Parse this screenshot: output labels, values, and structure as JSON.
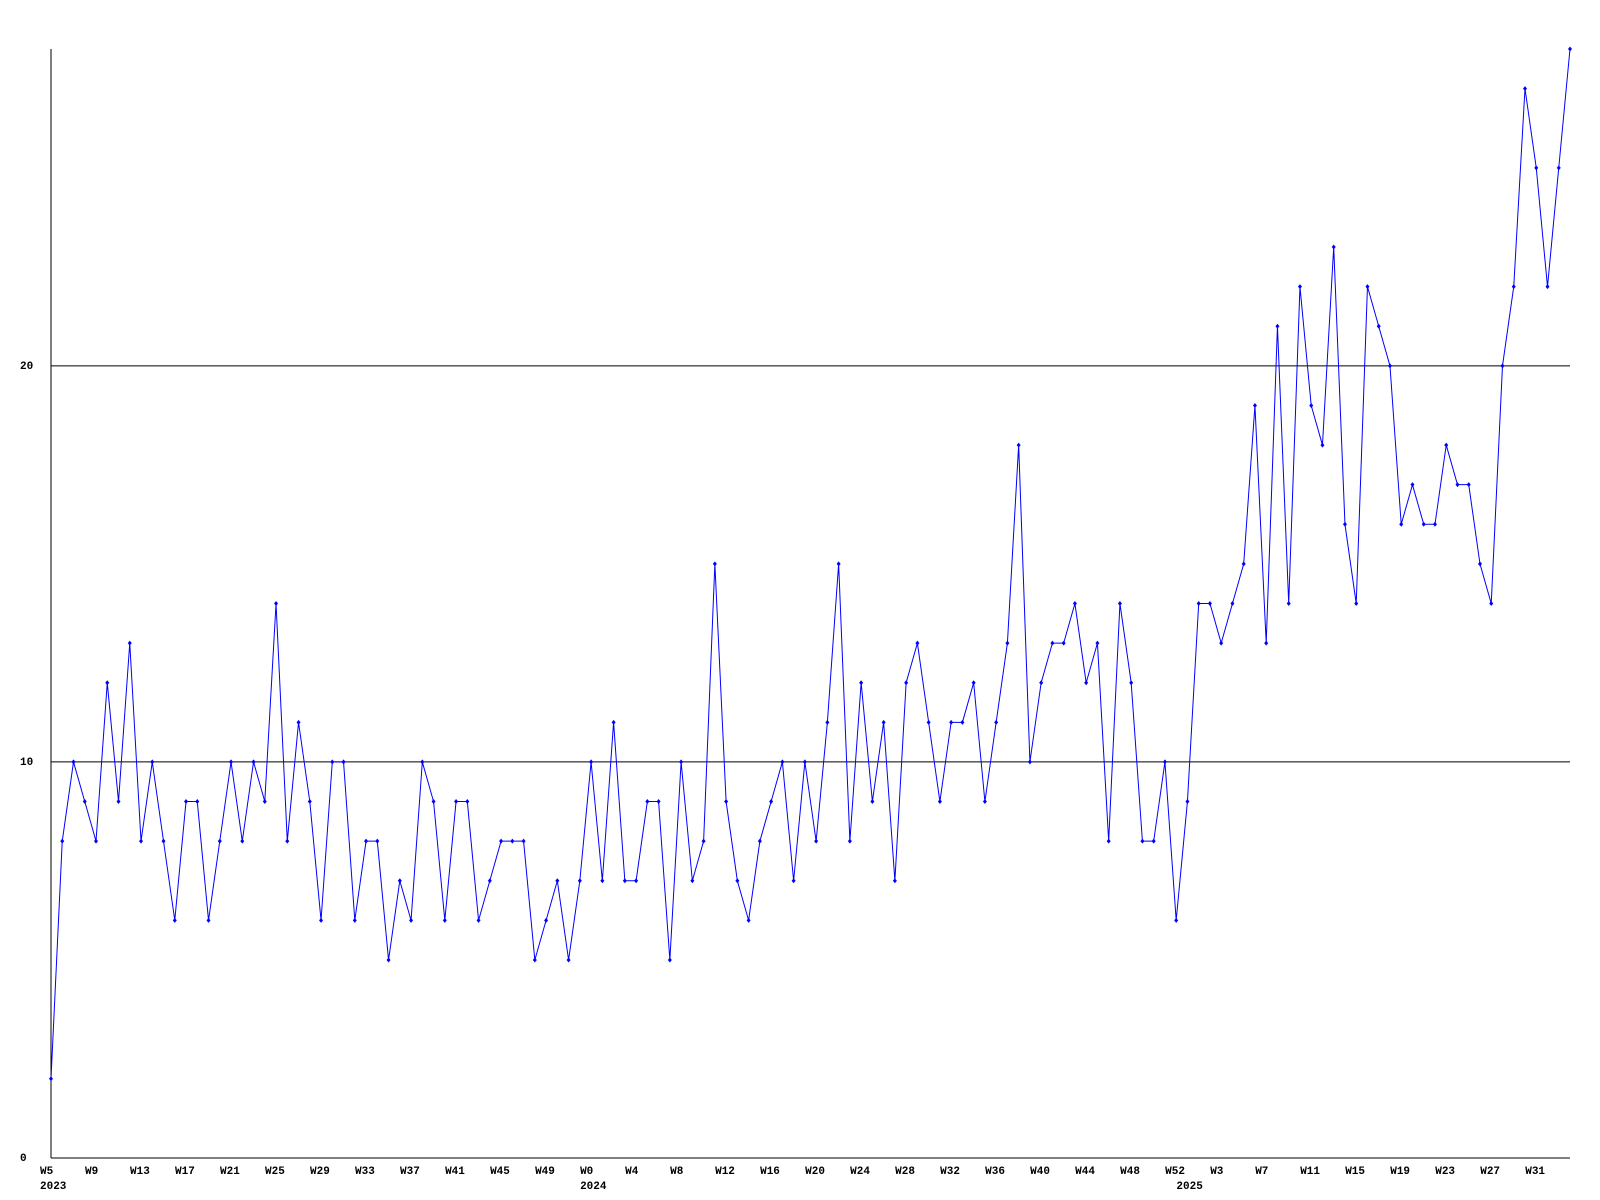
{
  "chart_data": {
    "type": "line",
    "color": "#0000ff",
    "grid": true,
    "ylim": [
      0,
      28
    ],
    "yticks": [
      0,
      10,
      20
    ],
    "categories": [
      "W5",
      null,
      null,
      null,
      "W9",
      null,
      null,
      null,
      "W13",
      null,
      null,
      null,
      "W17",
      null,
      null,
      null,
      "W21",
      null,
      null,
      null,
      "W25",
      null,
      null,
      null,
      "W29",
      null,
      null,
      null,
      "W33",
      null,
      null,
      null,
      "W37",
      null,
      null,
      null,
      "W41",
      null,
      null,
      null,
      "W45",
      null,
      null,
      null,
      "W49",
      null,
      null,
      null,
      "W0",
      null,
      null,
      null,
      "W4",
      null,
      null,
      null,
      "W8",
      null,
      null,
      null,
      "W12",
      null,
      null,
      null,
      "W16",
      null,
      null,
      null,
      "W20",
      null,
      null,
      null,
      "W24",
      null,
      null,
      null,
      "W28",
      null,
      null,
      null,
      "W32",
      null,
      null,
      null,
      "W36",
      null,
      null,
      null,
      "W40",
      null,
      null,
      null,
      "W44",
      null,
      null,
      null,
      "W48",
      null,
      null,
      null,
      "W52",
      null,
      null,
      null,
      "W3",
      null,
      null,
      null,
      "W7",
      null,
      null,
      null,
      "W11",
      null,
      null,
      null,
      "W15",
      null,
      null,
      null,
      "W19",
      null,
      null,
      null,
      "W23",
      null,
      null,
      null,
      "W27",
      null,
      null,
      null,
      "W31",
      null,
      null,
      null
    ],
    "years": [
      "2023",
      null,
      null,
      null,
      null,
      null,
      null,
      null,
      null,
      null,
      null,
      null,
      null,
      null,
      null,
      null,
      null,
      null,
      null,
      null,
      null,
      null,
      null,
      null,
      null,
      null,
      null,
      null,
      null,
      null,
      null,
      null,
      null,
      null,
      null,
      null,
      null,
      null,
      null,
      null,
      null,
      null,
      null,
      null,
      null,
      null,
      null,
      null,
      "2024",
      null,
      null,
      null,
      null,
      null,
      null,
      null,
      null,
      null,
      null,
      null,
      null,
      null,
      null,
      null,
      null,
      null,
      null,
      null,
      null,
      null,
      null,
      null,
      null,
      null,
      null,
      null,
      null,
      null,
      null,
      null,
      null,
      null,
      null,
      null,
      null,
      null,
      null,
      null,
      null,
      null,
      null,
      null,
      null,
      null,
      null,
      null,
      null,
      null,
      null,
      null,
      null,
      "2025",
      null,
      null,
      null,
      null,
      null,
      null,
      null,
      null,
      null,
      null,
      null,
      null,
      null,
      null,
      null,
      null,
      null,
      null,
      null,
      null,
      null,
      null,
      null,
      null,
      null,
      null,
      null,
      null,
      null,
      null,
      null,
      null,
      null,
      null
    ],
    "values": [
      2,
      8,
      10,
      9,
      8,
      12,
      9,
      13,
      8,
      10,
      8,
      6,
      9,
      9,
      6,
      8,
      10,
      8,
      10,
      9,
      14,
      8,
      11,
      9,
      6,
      10,
      10,
      6,
      8,
      8,
      5,
      7,
      6,
      10,
      9,
      6,
      9,
      9,
      6,
      7,
      8,
      8,
      8,
      5,
      6,
      7,
      5,
      7,
      10,
      7,
      11,
      7,
      7,
      9,
      9,
      5,
      10,
      7,
      8,
      15,
      9,
      7,
      6,
      8,
      9,
      10,
      7,
      10,
      8,
      11,
      15,
      8,
      12,
      9,
      11,
      7,
      12,
      13,
      11,
      9,
      11,
      11,
      12,
      9,
      11,
      13,
      18,
      10,
      12,
      13,
      13,
      14,
      12,
      13,
      8,
      14,
      12,
      8,
      8,
      10,
      6,
      9,
      14,
      14,
      13,
      14,
      15,
      19,
      13,
      21,
      14,
      22,
      19,
      18,
      23,
      16,
      14,
      22,
      21,
      20,
      16,
      17,
      16,
      16,
      18,
      17,
      17,
      15,
      14,
      20,
      22,
      27,
      25,
      22,
      25,
      28
    ]
  }
}
